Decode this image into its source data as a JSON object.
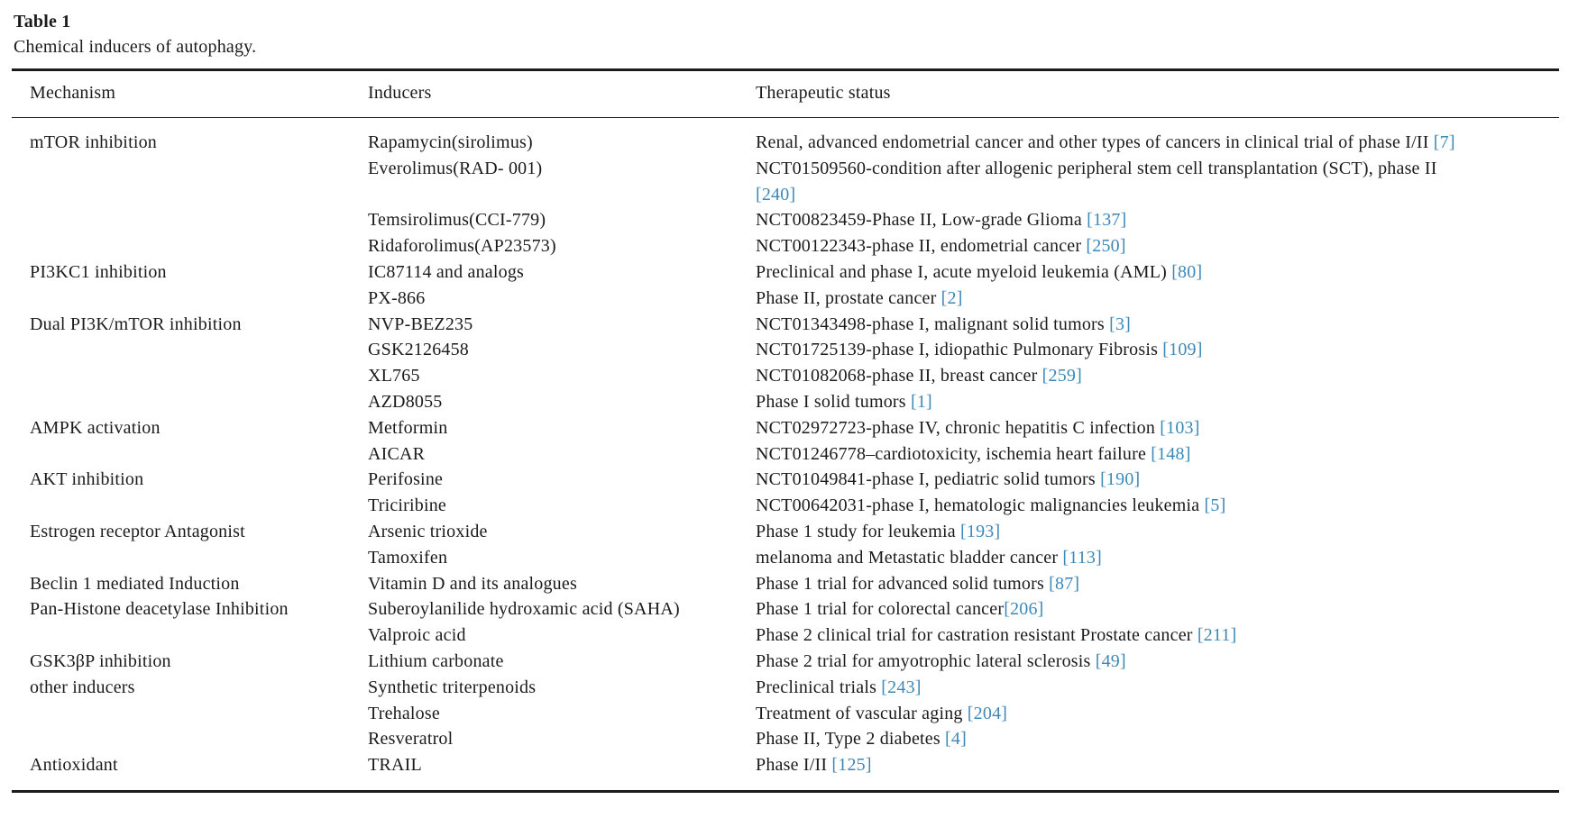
{
  "page": {
    "title": "Table 1",
    "caption": "Chemical inducers of autophagy."
  },
  "table": {
    "ref_color": "#3c89b9",
    "text_color": "#1b1b1b",
    "headers": {
      "mechanism": "Mechanism",
      "inducer": "Inducers",
      "status": "Therapeutic status"
    },
    "rows": [
      {
        "mechanism": "mTOR inhibition",
        "inducer": "Rapamycin(sirolimus)",
        "status": "Renal, advanced endometrial cancer and other types of cancers in clinical trial of phase I/II",
        "ref": " [7]"
      },
      {
        "mechanism": "",
        "inducer": "Everolimus(RAD- 001)",
        "status": "NCT01509560-condition after allogenic peripheral stem cell transplantation (SCT), phase II",
        "ref": "\n[240]"
      },
      {
        "mechanism": "",
        "inducer": "Temsirolimus(CCI-779)",
        "status": "NCT00823459-Phase II, Low-grade Glioma",
        "ref": " [137]"
      },
      {
        "mechanism": "",
        "inducer": "Ridaforolimus(AP23573)",
        "status": "NCT00122343-phase II, endometrial cancer",
        "ref": " [250]"
      },
      {
        "mechanism": "PI3KC1 inhibition",
        "inducer": "IC87114 and analogs",
        "status": "Preclinical and phase I, acute myeloid leukemia (AML)",
        "ref": " [80]"
      },
      {
        "mechanism": "",
        "inducer": "PX-866",
        "status": "Phase II, prostate cancer",
        "ref": " [2]"
      },
      {
        "mechanism": "Dual PI3K/mTOR inhibition",
        "inducer": "NVP-BEZ235",
        "status": "NCT01343498-phase I, malignant solid tumors",
        "ref": " [3]"
      },
      {
        "mechanism": "",
        "inducer": "GSK2126458",
        "status": "NCT01725139-phase I, idiopathic Pulmonary Fibrosis",
        "ref": " [109]"
      },
      {
        "mechanism": "",
        "inducer": "XL765",
        "status": "NCT01082068-phase II, breast cancer",
        "ref": " [259]"
      },
      {
        "mechanism": "",
        "inducer": "AZD8055",
        "status": "Phase I solid tumors",
        "ref": " [1]"
      },
      {
        "mechanism": "AMPK activation",
        "inducer": "Metformin",
        "status": "NCT02972723-phase IV, chronic hepatitis C infection",
        "ref": " [103]"
      },
      {
        "mechanism": "",
        "inducer": "AICAR",
        "status": "NCT01246778–cardiotoxicity, ischemia heart failure",
        "ref": " [148]"
      },
      {
        "mechanism": "AKT inhibition",
        "inducer": "Perifosine",
        "status": "NCT01049841-phase I, pediatric solid tumors",
        "ref": " [190]"
      },
      {
        "mechanism": "",
        "inducer": "Triciribine",
        "status": "NCT00642031-phase I, hematologic malignancies leukemia",
        "ref": " [5]"
      },
      {
        "mechanism": "Estrogen receptor Antagonist",
        "inducer": "Arsenic trioxide",
        "status": "Phase 1 study for leukemia",
        "ref": " [193]"
      },
      {
        "mechanism": "",
        "inducer": "Tamoxifen",
        "status": "melanoma and Metastatic bladder cancer",
        "ref": " [113]"
      },
      {
        "mechanism": "Beclin 1 mediated Induction",
        "inducer": "Vitamin D and its analogues",
        "status": "Phase 1 trial for advanced solid tumors",
        "ref": " [87]"
      },
      {
        "mechanism": "Pan-Histone deacetylase Inhibition",
        "inducer": "Suberoylanilide hydroxamic acid (SAHA)",
        "status": "Phase 1 trial for colorectal cancer",
        "ref": "[206]"
      },
      {
        "mechanism": "",
        "inducer": "Valproic acid",
        "status": "Phase 2 clinical trial for castration resistant Prostate cancer",
        "ref": " [211]"
      },
      {
        "mechanism": "GSK3βP inhibition",
        "inducer": "Lithium carbonate",
        "status": "Phase 2 trial for amyotrophic lateral sclerosis",
        "ref": " [49]"
      },
      {
        "mechanism": "other inducers",
        "inducer": "Synthetic triterpenoids",
        "status": "Preclinical trials",
        "ref": " [243]"
      },
      {
        "mechanism": "",
        "inducer": "Trehalose",
        "status": "Treatment of vascular aging",
        "ref": " [204]"
      },
      {
        "mechanism": "",
        "inducer": "Resveratrol",
        "status": "Phase II, Type 2 diabetes",
        "ref": " [4]"
      },
      {
        "mechanism": "Antioxidant",
        "inducer": "TRAIL",
        "status": "Phase I/II",
        "ref": " [125]"
      }
    ]
  }
}
